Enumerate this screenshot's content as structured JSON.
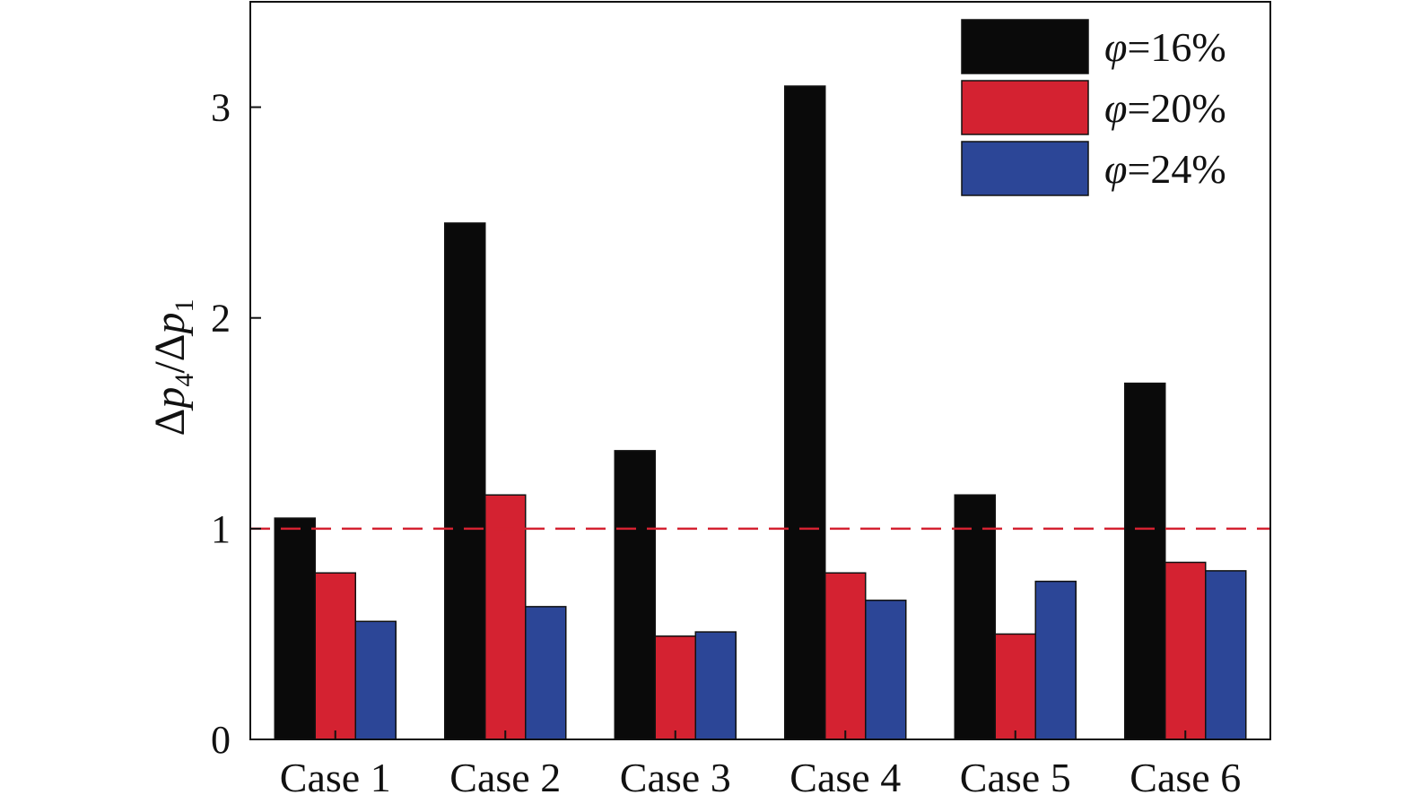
{
  "chart_data": {
    "type": "bar",
    "title": "",
    "xlabel": "",
    "ylabel": {
      "delta": "Δ",
      "num_var": "p",
      "num_sub": "4",
      "sep": "/",
      "den_var": "p",
      "den_sub": "1"
    },
    "categories": [
      "Case 1",
      "Case 2",
      "Case 3",
      "Case 4",
      "Case 5",
      "Case 6"
    ],
    "series": [
      {
        "name": "=16%",
        "symbol": "φ",
        "color": "#0a0a0a",
        "values": [
          1.05,
          2.45,
          1.37,
          3.1,
          1.16,
          1.69
        ]
      },
      {
        "name": "=20%",
        "symbol": "φ",
        "color": "#d42231",
        "values": [
          0.79,
          1.16,
          0.49,
          0.79,
          0.5,
          0.84
        ]
      },
      {
        "name": "=24%",
        "symbol": "φ",
        "color": "#2c4697",
        "values": [
          0.56,
          0.63,
          0.51,
          0.66,
          0.75,
          0.8
        ]
      }
    ],
    "ylim": [
      0,
      3.5
    ],
    "yticks": [
      {
        "value": 0,
        "label": "0"
      },
      {
        "value": 1,
        "label": "1"
      },
      {
        "value": 2,
        "label": "2"
      },
      {
        "value": 3,
        "label": "3"
      }
    ],
    "reference_line": {
      "value": 1,
      "style": "dashed",
      "color": "#d42231"
    },
    "legend": {
      "position": "top-right"
    },
    "grid": false
  }
}
